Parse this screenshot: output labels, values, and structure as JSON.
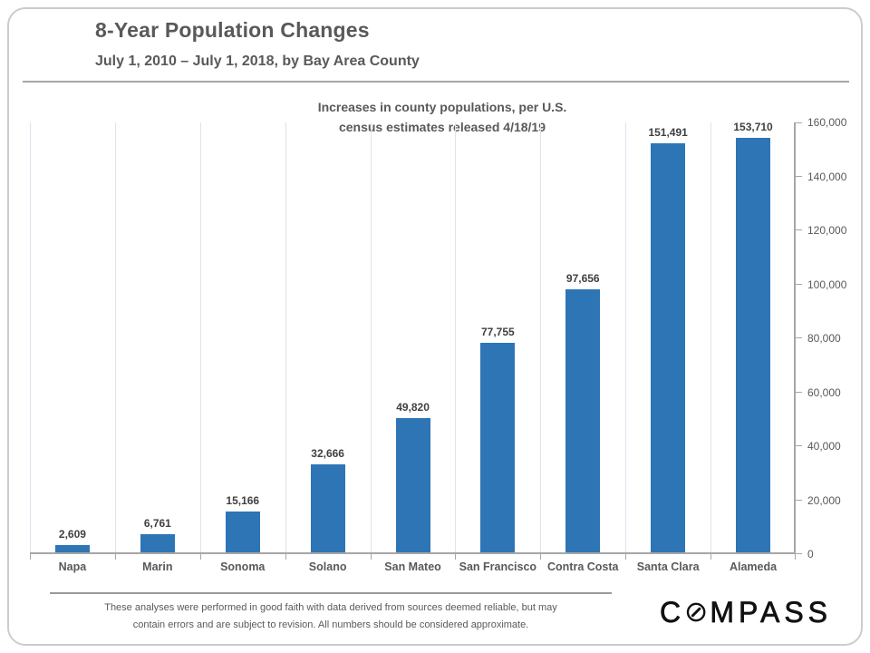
{
  "header": {
    "title": "8-Year Population Changes",
    "subtitle": "July 1, 2010 – July 1, 2018, by Bay Area County"
  },
  "chart_data": {
    "type": "bar",
    "title": "Increases in county populations, per U.S. census estimates released 4/18/19",
    "annotation_line1": "Increases in county populations,  per U.S.",
    "annotation_line2": "census estimates released 4/18/19",
    "categories": [
      "Napa",
      "Marin",
      "Sonoma",
      "Solano",
      "San Mateo",
      "San Francisco",
      "Contra Costa",
      "Santa Clara",
      "Alameda"
    ],
    "values": [
      2609,
      6761,
      15166,
      32666,
      49820,
      77755,
      97656,
      151491,
      153710
    ],
    "value_labels": [
      "2,609",
      "6,761",
      "15,166",
      "32,666",
      "49,820",
      "77,755",
      "97,656",
      "151,491",
      "153,710"
    ],
    "xlabel": "",
    "ylabel": "",
    "ylim": [
      0,
      160000
    ],
    "yticks": [
      0,
      20000,
      40000,
      60000,
      80000,
      100000,
      120000,
      140000,
      160000
    ],
    "ytick_labels": [
      "0",
      "20,000",
      "40,000",
      "60,000",
      "80,000",
      "100,000",
      "120,000",
      "140,000",
      "160,000"
    ],
    "y_axis_side": "right",
    "grid": "vertical category boundaries only",
    "legend": "none",
    "bar_color": "#2E75B6",
    "axis_color": "#A6A6A6",
    "grid_color": "#DCE4EC"
  },
  "footer": {
    "disclaimer_line1": "These analyses were performed in good faith with data derived from sources deemed reliable, but may",
    "disclaimer_line2": "contain errors and are subject to revision.  All numbers should be considered approximate.",
    "logo_prefix": "C",
    "logo_suffix": "MPASS"
  }
}
